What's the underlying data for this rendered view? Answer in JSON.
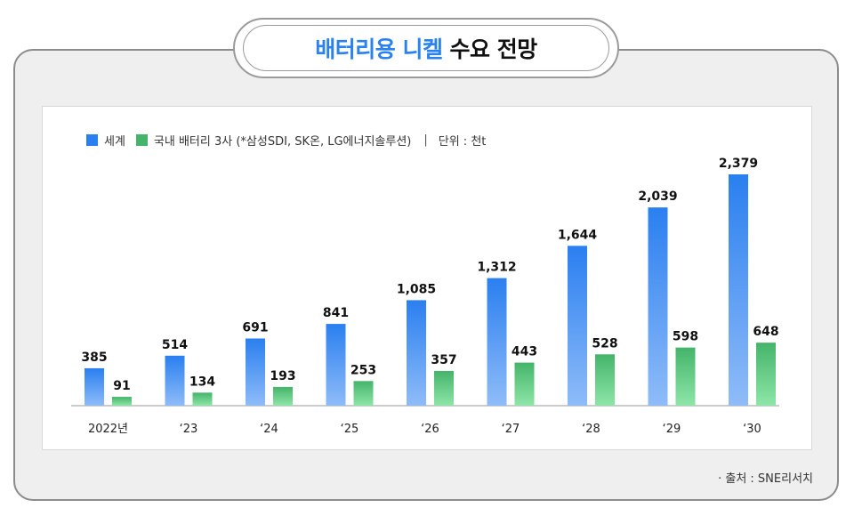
{
  "title": {
    "accent": "배터리용 니켈",
    "rest": "수요 전망"
  },
  "legend": {
    "series1": "세계",
    "series2": "국내 배터리 3사 (*삼성SDI, SK온, LG에너지솔루션)",
    "separator": "|",
    "unit": "단위 : 천t"
  },
  "source": "· 출처 : SNE리서치",
  "colors": {
    "world_top": "#2a7ff0",
    "world_bottom": "#8fbcf8",
    "korea_top": "#44b46a",
    "korea_bottom": "#8ee6a8",
    "title_accent": "#2a82ee"
  },
  "chart_data": {
    "type": "bar",
    "categories": [
      "2022년",
      "‘23",
      "‘24",
      "‘25",
      "‘26",
      "‘27",
      "‘28",
      "‘29",
      "‘30"
    ],
    "series": [
      {
        "name": "세계",
        "values": [
          385,
          514,
          691,
          841,
          1085,
          1312,
          1644,
          2039,
          2379
        ],
        "labels": [
          "385",
          "514",
          "691",
          "841",
          "1,085",
          "1,312",
          "1,644",
          "2,039",
          "2,379"
        ]
      },
      {
        "name": "국내 배터리 3사 (*삼성SDI, SK온, LG에너지솔루션)",
        "values": [
          91,
          134,
          193,
          253,
          357,
          443,
          528,
          598,
          648
        ],
        "labels": [
          "91",
          "134",
          "193",
          "253",
          "357",
          "443",
          "528",
          "598",
          "648"
        ]
      }
    ],
    "ylim": [
      0,
      2400
    ],
    "grid": false,
    "legend_position": "top-left"
  }
}
